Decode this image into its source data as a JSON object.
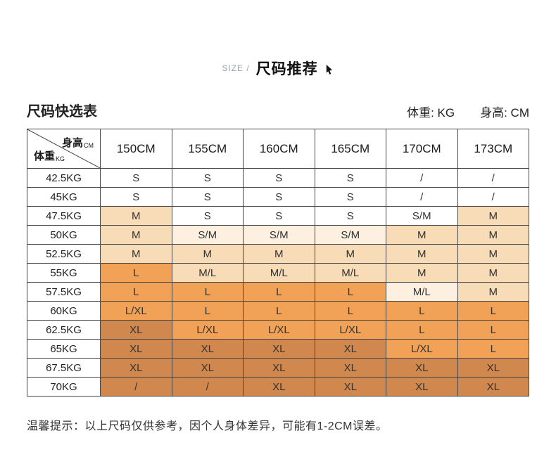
{
  "header": {
    "size_label": "SIZE /",
    "title": "尺码推荐"
  },
  "subheader": {
    "table_title": "尺码快选表",
    "weight_unit_label": "体重: KG",
    "height_unit_label": "身高: CM"
  },
  "footer": {
    "note": "温馨提示：以上尺码仅供参考，因个人身体差异，可能有1-2CM误差。"
  },
  "icons": {
    "title_cursor": "cursor-pointer-icon"
  },
  "colors": {
    "border": "#454545",
    "accent_orange": "#f1a257",
    "title_gray": "#9aa4ab"
  },
  "chart_data": {
    "type": "table",
    "title": "尺码快选表",
    "corner": {
      "top_label": "身高",
      "top_unit": "CM",
      "bottom_label": "体重",
      "bottom_unit": "KG"
    },
    "columns": [
      "150CM",
      "155CM",
      "160CM",
      "165CM",
      "170CM",
      "173CM"
    ],
    "row_labels": [
      "42.5KG",
      "45KG",
      "47.5KG",
      "50KG",
      "52.5KG",
      "55KG",
      "57.5KG",
      "60KG",
      "62.5KG",
      "65KG",
      "67.5KG",
      "70KG"
    ],
    "cells": [
      [
        "S",
        "S",
        "S",
        "S",
        "/",
        "/"
      ],
      [
        "S",
        "S",
        "S",
        "S",
        "/",
        "/"
      ],
      [
        "M",
        "S",
        "S",
        "S",
        "S/M",
        "M"
      ],
      [
        "M",
        "S/M",
        "S/M",
        "S/M",
        "M",
        "M"
      ],
      [
        "M",
        "M",
        "M",
        "M",
        "M",
        "M"
      ],
      [
        "L",
        "M/L",
        "M/L",
        "M/L",
        "M",
        "M"
      ],
      [
        "L",
        "L",
        "L",
        "L",
        "M/L",
        "M"
      ],
      [
        "L/XL",
        "L",
        "L",
        "L",
        "L",
        "L"
      ],
      [
        "XL",
        "L/XL",
        "L/XL",
        "L/XL",
        "L",
        "L"
      ],
      [
        "XL",
        "XL",
        "XL",
        "XL",
        "L/XL",
        "L"
      ],
      [
        "XL",
        "XL",
        "XL",
        "XL",
        "XL",
        "XL"
      ],
      [
        "/",
        "/",
        "XL",
        "XL",
        "XL",
        "XL"
      ]
    ],
    "cell_shade_levels": [
      [
        0,
        0,
        0,
        0,
        0,
        0
      ],
      [
        0,
        0,
        0,
        0,
        0,
        0
      ],
      [
        2,
        0,
        0,
        0,
        0,
        2
      ],
      [
        2,
        1,
        1,
        1,
        2,
        2
      ],
      [
        2,
        2,
        2,
        2,
        2,
        2
      ],
      [
        3,
        2,
        2,
        2,
        2,
        2
      ],
      [
        3,
        3,
        3,
        3,
        1,
        2
      ],
      [
        3,
        3,
        3,
        3,
        3,
        3
      ],
      [
        4,
        3,
        3,
        3,
        3,
        3
      ],
      [
        4,
        4,
        4,
        4,
        3,
        3
      ],
      [
        4,
        4,
        4,
        4,
        4,
        4
      ],
      [
        4,
        4,
        4,
        4,
        4,
        4
      ]
    ],
    "shade_palette": {
      "0": "#ffffff",
      "1": "#fdf0e0",
      "2": "#f8dcb8",
      "3": "#f1a257",
      "4": "#d1884e"
    }
  }
}
